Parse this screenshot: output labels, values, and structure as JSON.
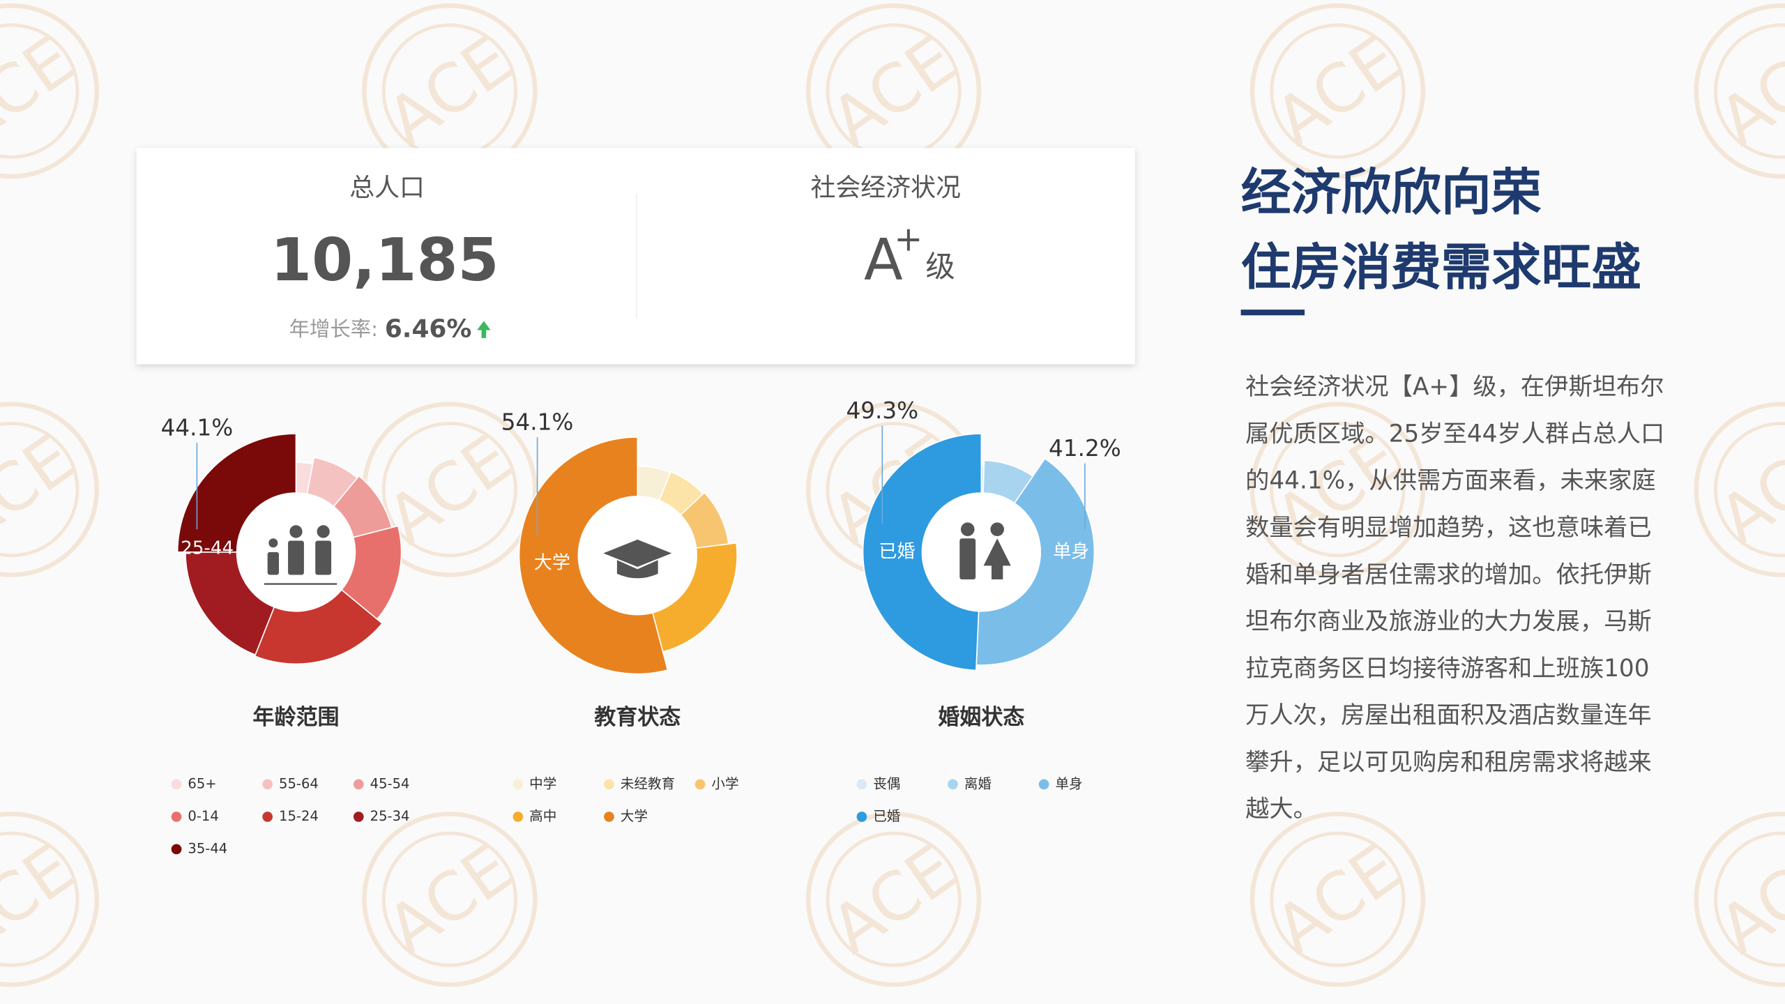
{
  "kpi": {
    "population_label": "总人口",
    "population": "10,185",
    "growth_label": "年增长率:",
    "growth": "6.46%",
    "status_label": "社会经济状况",
    "rating": "A",
    "rating_sup": "+",
    "rating_suffix": "级"
  },
  "headline": {
    "line1": "经济欣欣向荣",
    "line2": "住房消费需求旺盛"
  },
  "paragraph": {
    "lines": [
      "社会经济状况【A+】级，在伊斯坦布尔",
      "属优质区域。25岁至44岁人群占总人口",
      "的44.1%，从供需方面来看，未来家庭",
      "数量会有明显增加趋势，这也意味着已",
      "婚和单身者居住需求的增加。依托伊斯",
      "坦布尔商业及旅游业的大力发展，马斯",
      "拉克商务区日均接待游客和上班族100",
      "万人次，房屋出租面积及酒店数量连年",
      "攀升，足以可见购房和租房需求将越来",
      "越大。"
    ]
  },
  "chart_data": [
    {
      "type": "pie",
      "title": "年龄范围",
      "rose": true,
      "categories": [
        "65+",
        "55-64",
        "45-54",
        "0-14",
        "15-24",
        "25-34",
        "35-44"
      ],
      "values": [
        3,
        8,
        10,
        15,
        20,
        19,
        25
      ],
      "colors": [
        "#f9dcdc",
        "#f5c2c2",
        "#ee9c9a",
        "#e8706c",
        "#c7372f",
        "#a11c21",
        "#7a0a0a"
      ],
      "annotations": [
        "44.1%"
      ],
      "inner_labels": [
        "25-44"
      ]
    },
    {
      "type": "pie",
      "title": "教育状态",
      "rose": true,
      "categories": [
        "中学",
        "未经教育",
        "小学",
        "高中",
        "大学"
      ],
      "values": [
        6,
        7,
        10,
        22.9,
        54.1
      ],
      "colors": [
        "#f8efd7",
        "#fce3a8",
        "#f7c56f",
        "#f6ad2e",
        "#e8821f"
      ],
      "annotations": [
        "54.1%"
      ],
      "inner_labels": [
        "大学"
      ]
    },
    {
      "type": "pie",
      "title": "婚姻状态",
      "rose": true,
      "categories": [
        "丧偶",
        "离婚",
        "单身",
        "已婚"
      ],
      "values": [
        0.5,
        9,
        41.2,
        49.3
      ],
      "colors": [
        "#d9e9f7",
        "#a9d4f0",
        "#7bbde9",
        "#2e9ae0"
      ],
      "annotations": [
        "49.3%",
        "41.2%"
      ],
      "inner_labels": [
        "已婚",
        "单身"
      ]
    }
  ]
}
